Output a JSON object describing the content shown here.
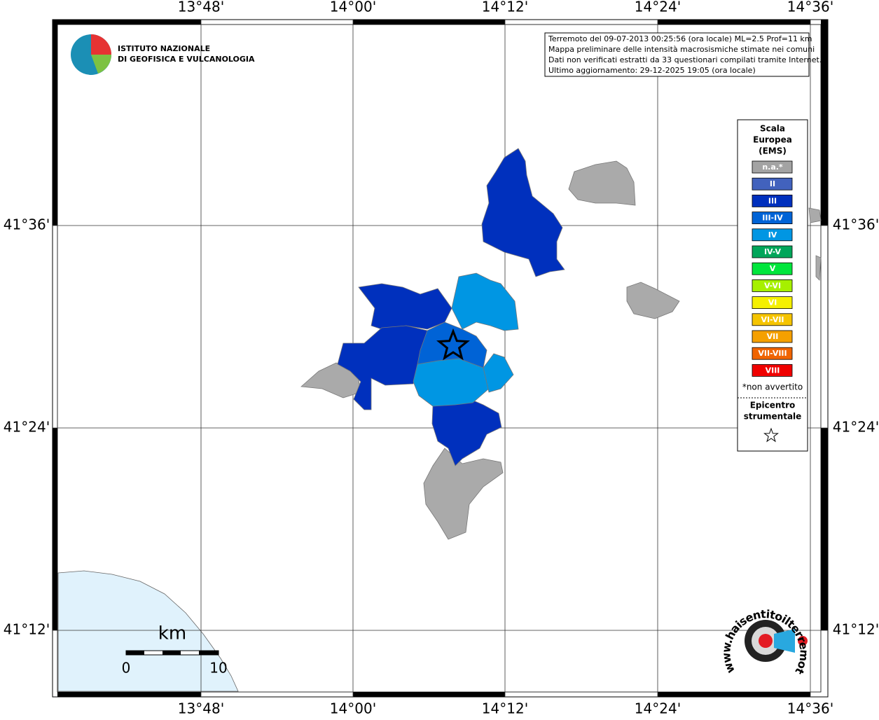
{
  "map": {
    "lon_labels": [
      "13°48'",
      "14°00'",
      "14°12'",
      "14°24'",
      "14°36'"
    ],
    "lat_labels": [
      "41°36'",
      "41°24'",
      "41°12'"
    ],
    "info_lines": [
      "Terremoto del 09-07-2013 00:25:56 (ora locale) ML=2.5 Prof=11 km",
      "Mappa preliminare delle intensità macrosismiche stimate nei comuni",
      "Dati non verificati estratti da 33 questionari compilati tramite Internet.",
      "Ultimo aggiornamento: 29-12-2025 19:05 (ora locale)"
    ],
    "logo_lines": [
      "ISTITUTO NAZIONALE",
      "DI GEOFISICA E VULCANOLOGIA"
    ],
    "legend": {
      "title_lines": [
        "Scala",
        "Europea",
        "(EMS)"
      ],
      "items": [
        {
          "label": "n.a.*",
          "color": "#a3a3a3"
        },
        {
          "label": "II",
          "color": "#4262bd"
        },
        {
          "label": "III",
          "color": "#0030bd"
        },
        {
          "label": "III-IV",
          "color": "#0063d6"
        },
        {
          "label": "IV",
          "color": "#0096e3"
        },
        {
          "label": "IV-V",
          "color": "#00a65a"
        },
        {
          "label": "V",
          "color": "#00e63c"
        },
        {
          "label": "V-VI",
          "color": "#a6f000"
        },
        {
          "label": "VI",
          "color": "#f5f000"
        },
        {
          "label": "VI-VII",
          "color": "#f5c400"
        },
        {
          "label": "VII",
          "color": "#f5a000"
        },
        {
          "label": "VII-VIII",
          "color": "#f06400"
        },
        {
          "label": "VIII",
          "color": "#f00000"
        }
      ],
      "footnote": "*non avvertito",
      "epicenter_lines": [
        "Epicentro",
        "strumentale"
      ]
    },
    "scale_bar": {
      "unit": "km",
      "labels": [
        "0",
        "10"
      ]
    },
    "site_logo": "www.haisentitoilterremoto.it"
  }
}
